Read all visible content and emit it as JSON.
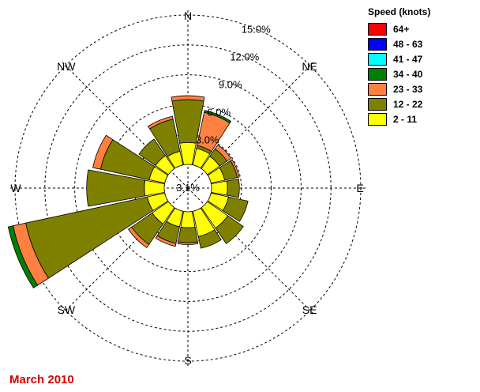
{
  "footer_text": "March 2010",
  "chart_data": {
    "type": "windrose",
    "legend_title": "Speed (knots)",
    "legend_placement": "top-right",
    "directions": [
      "N",
      "NNE",
      "NE",
      "ENE",
      "E",
      "ESE",
      "SE",
      "SSE",
      "S",
      "SSW",
      "SW",
      "WSW",
      "W",
      "WNW",
      "NW",
      "NNW"
    ],
    "compass_labels": [
      "N",
      "NE",
      "E",
      "SE",
      "S",
      "SW",
      "W",
      "NW"
    ],
    "ring_labels": [
      "3.0%",
      "6.0%",
      "9.0%",
      "12.0%",
      "15.0%"
    ],
    "ring_values": [
      3,
      6,
      9,
      12,
      15
    ],
    "center_label": "3.1%",
    "calm_percent": 3.1,
    "series": [
      {
        "name": "64+",
        "color": "#ff0000",
        "values": [
          0,
          0,
          0,
          0,
          0,
          0,
          0,
          0,
          0,
          0,
          0,
          0,
          0,
          0,
          0,
          0
        ]
      },
      {
        "name": "48 - 63",
        "color": "#0000ff",
        "values": [
          0,
          0,
          0,
          0,
          0,
          0,
          0,
          0,
          0,
          0,
          0,
          0,
          0,
          0,
          0,
          0
        ]
      },
      {
        "name": "41 - 47",
        "color": "#00ffff",
        "values": [
          0,
          0,
          0,
          0,
          0,
          0,
          0,
          0,
          0,
          0,
          0,
          0,
          0,
          0,
          0,
          0
        ]
      },
      {
        "name": "34 - 40",
        "color": "#008000",
        "values": [
          0,
          0.2,
          0,
          0,
          0,
          0,
          0,
          0,
          0,
          0,
          0,
          0.5,
          0,
          0,
          0,
          0
        ]
      },
      {
        "name": "23 - 33",
        "color": "#ff8040",
        "values": [
          0.4,
          3.4,
          0.5,
          0.2,
          0,
          0,
          0,
          0,
          0.2,
          0.3,
          0.4,
          1.3,
          0,
          0.8,
          0,
          0.3
        ]
      },
      {
        "name": "12 - 22",
        "color": "#808000",
        "values": [
          4.3,
          0.3,
          0.9,
          1.3,
          1.2,
          2.0,
          1.9,
          1.2,
          1.5,
          1.7,
          2.5,
          12.5,
          5.8,
          5.0,
          2.0,
          3.3
        ]
      },
      {
        "name": "2 - 11",
        "color": "#ffff00",
        "values": [
          2.2,
          1.7,
          1.5,
          1.4,
          1.6,
          1.8,
          2.5,
          2.6,
          1.6,
          1.6,
          2.0,
          1.8,
          2.0,
          1.6,
          1.6,
          1.4
        ]
      }
    ],
    "grid": true
  }
}
